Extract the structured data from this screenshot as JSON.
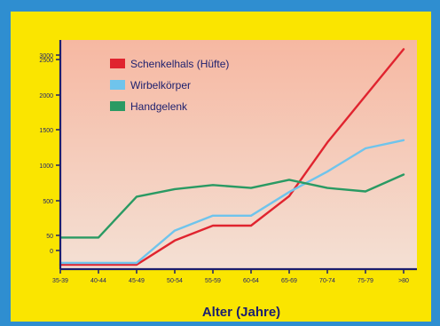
{
  "chart_data": {
    "type": "line",
    "xlabel": "Alter (Jahre)",
    "categories": [
      "35-39",
      "40-44",
      "45-49",
      "50-54",
      "55-59",
      "60-64",
      "65-69",
      "70-74",
      "75-79",
      ">80"
    ],
    "y_ticks": [
      "0",
      "50",
      "500",
      "1000",
      "1500",
      "2000",
      "2500",
      "3000"
    ],
    "legend_position": "top-left",
    "grid": false,
    "series": [
      {
        "name": "Schenkelhals (Hüfte)",
        "color": "#e0242f",
        "values": [
          -40,
          -40,
          -40,
          100,
          250,
          250,
          580,
          1500,
          2300,
          3100
        ]
      },
      {
        "name": "Wirbelkörper",
        "color": "#6fc4ec",
        "values": [
          0,
          0,
          0,
          200,
          350,
          350,
          650,
          1000,
          1400,
          1540
        ]
      },
      {
        "name": "Handgelenk",
        "color": "#2a9a63",
        "values": [
          130,
          130,
          570,
          700,
          770,
          720,
          860,
          720,
          660,
          950
        ]
      }
    ]
  },
  "colors": {
    "outer_border": "#2f8ed0",
    "frame": "#fae500",
    "plot_top": "#f6b8a2",
    "plot_bottom": "#f4e0d4",
    "axis": "#1c1f6e"
  }
}
